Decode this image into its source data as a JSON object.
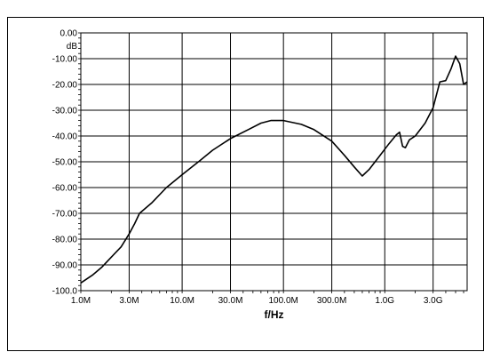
{
  "chart_data": {
    "type": "line",
    "title": "",
    "xlabel": "f/Hz",
    "ylabel": "",
    "y_unit": "dB",
    "x_scale": "log",
    "xlim": [
      1000000,
      6500000000
    ],
    "ylim": [
      -100,
      0
    ],
    "grid": true,
    "x_ticks": [
      {
        "value": 1000000,
        "label": "1.0M"
      },
      {
        "value": 3000000,
        "label": "3.0M"
      },
      {
        "value": 10000000,
        "label": "10.0M"
      },
      {
        "value": 30000000,
        "label": "30.0M"
      },
      {
        "value": 100000000,
        "label": "100.0M"
      },
      {
        "value": 300000000,
        "label": "300.0M"
      },
      {
        "value": 1000000000,
        "label": "1.0G"
      },
      {
        "value": 3000000000,
        "label": "3.0G"
      }
    ],
    "y_ticks": [
      {
        "value": 0,
        "label": "0.00"
      },
      {
        "value": -10,
        "label": "-10.00"
      },
      {
        "value": -20,
        "label": "-20.00"
      },
      {
        "value": -30,
        "label": "-30.00"
      },
      {
        "value": -40,
        "label": "-40.00"
      },
      {
        "value": -50,
        "label": "-50.00"
      },
      {
        "value": -60,
        "label": "-60.00"
      },
      {
        "value": -70,
        "label": "-70.00"
      },
      {
        "value": -80,
        "label": "-80.00"
      },
      {
        "value": -90,
        "label": "-90.00"
      },
      {
        "value": -100,
        "label": "-100.0"
      }
    ],
    "series": [
      {
        "color": "#000000",
        "x": [
          1000000,
          1300000,
          1600000,
          2000000,
          2500000,
          3000000,
          3400000,
          3800000,
          5000000,
          7000000,
          10000000,
          15000000,
          20000000,
          30000000,
          45000000,
          60000000,
          75000000,
          100000000,
          150000000,
          200000000,
          300000000,
          400000000,
          500000000,
          600000000,
          700000000,
          900000000,
          1100000000,
          1300000000,
          1400000000,
          1500000000,
          1600000000,
          1750000000,
          2000000000,
          2500000000,
          3000000000,
          3500000000,
          4000000000,
          4500000000,
          5000000000,
          5500000000,
          6000000000,
          6500000000
        ],
        "y": [
          -97,
          -94,
          -91,
          -87,
          -83,
          -78,
          -74,
          -70,
          -66,
          -60,
          -55,
          -49.5,
          -45.5,
          -41,
          -37.5,
          -35,
          -34,
          -34,
          -35.5,
          -37.5,
          -42,
          -47.5,
          -52,
          -55.5,
          -53,
          -47.5,
          -43,
          -39.5,
          -38.5,
          -44,
          -44.5,
          -41.5,
          -40,
          -35,
          -29,
          -19,
          -18.5,
          -14,
          -9,
          -12,
          -20,
          -19
        ]
      }
    ]
  }
}
